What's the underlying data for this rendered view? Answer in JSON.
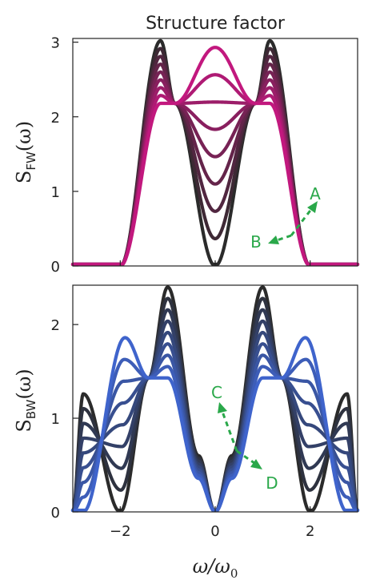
{
  "figure_title": "Structure factor",
  "colors": {
    "dark": "#2b2b2b",
    "fw": "#c2187e",
    "bw": "#3f64cc",
    "annotation": "#2aa84a"
  },
  "chart_data": [
    {
      "type": "line",
      "panel": "top",
      "title": "Structure factor",
      "ylabel_main": "S",
      "ylabel_sub": "FW",
      "ylabel_arg": "(ω)",
      "xlim": [
        -3,
        3
      ],
      "ylim": [
        0,
        3.05
      ],
      "yticks": [
        0,
        1,
        2,
        3
      ],
      "ytick_labels": [
        "0",
        "1",
        "2",
        "3"
      ],
      "grid": false,
      "family": {
        "count": 9,
        "color_from": "#2b2b2b",
        "color_to": "#c2187e",
        "support": [
          -2,
          2
        ],
        "crossings": {
          "x": [
            -0.85,
            0.85
          ],
          "y": 2.18
        },
        "outer_peaks": {
          "x": [
            -1.15,
            1.15
          ],
          "y_first": 3.02,
          "y_last": 2.18
        },
        "center_value": {
          "y_first": 0.0,
          "y_last": 2.93
        }
      },
      "annotations": [
        {
          "label": "A"
        },
        {
          "label": "B"
        }
      ]
    },
    {
      "type": "line",
      "panel": "bottom",
      "ylabel_main": "S",
      "ylabel_sub": "BW",
      "ylabel_arg": "(ω)",
      "xlabel_main": "ω/ω",
      "xlabel_sub": "0",
      "xlim": [
        -3,
        3
      ],
      "ylim": [
        0,
        2.42
      ],
      "xticks": [
        -2,
        0,
        2
      ],
      "xtick_labels": [
        "−2",
        "0",
        "2"
      ],
      "yticks": [
        0,
        1,
        2
      ],
      "ytick_labels": [
        "0",
        "1",
        "2"
      ],
      "grid": false,
      "family": {
        "count": 9,
        "color_from": "#2b2b2b",
        "color_to": "#3f64cc",
        "outer_bumps": {
          "x": [
            -2.78,
            2.78
          ],
          "y_first": 1.26
        },
        "crossings": {
          "x": [
            -1.4,
            1.4
          ],
          "y": 1.43
        },
        "inner_peaks": {
          "x": [
            -1.0,
            1.0
          ],
          "y_first": 2.4,
          "y_last": 1.43
        },
        "last_peaks": {
          "x": [
            -1.9,
            1.9
          ],
          "y": 1.86
        },
        "zeros_first": [
          -2.0,
          0.0,
          2.0
        ],
        "zero_last": 0.0
      },
      "annotations": [
        {
          "label": "C"
        },
        {
          "label": "D"
        }
      ]
    }
  ]
}
